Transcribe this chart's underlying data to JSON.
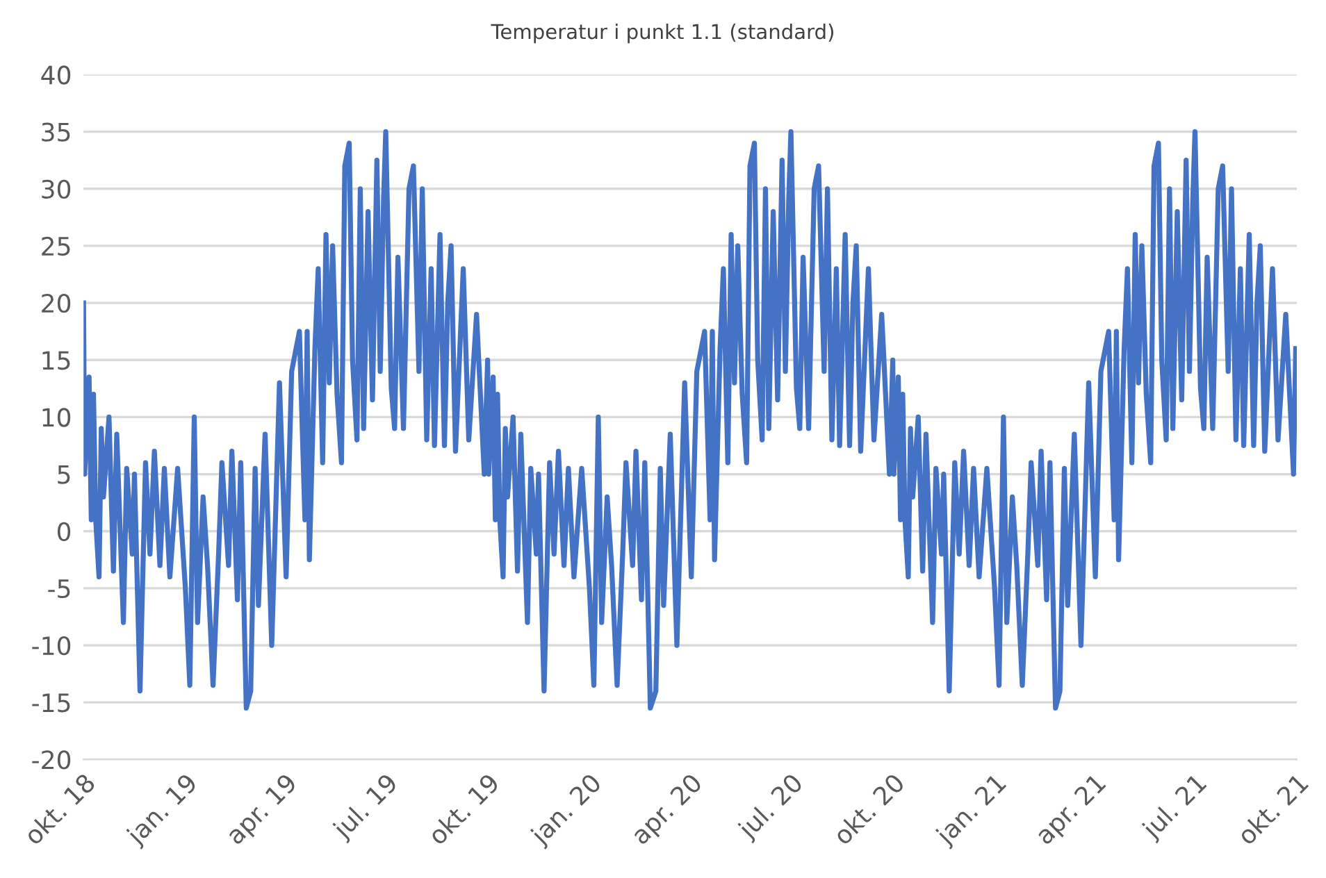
{
  "chart_data": {
    "type": "line",
    "title": "Temperatur i punkt 1.1 (standard)",
    "x": [
      "2018-10-01",
      "2018-10-02",
      "2018-10-06",
      "2018-10-08",
      "2018-10-10",
      "2018-10-12",
      "2018-10-15",
      "2018-10-17",
      "2018-10-19",
      "2018-10-24",
      "2018-10-28",
      "2018-10-31",
      "2018-11-06",
      "2018-11-09",
      "2018-11-14",
      "2018-11-16",
      "2018-11-21",
      "2018-11-26",
      "2018-11-30",
      "2018-12-04",
      "2018-12-09",
      "2018-12-13",
      "2018-12-18",
      "2018-12-25",
      "2019-01-01",
      "2019-01-05",
      "2019-01-09",
      "2019-01-12",
      "2019-01-17",
      "2019-01-21",
      "2019-01-26",
      "2019-01-31",
      "2019-02-03",
      "2019-02-09",
      "2019-02-12",
      "2019-02-17",
      "2019-02-20",
      "2019-02-25",
      "2019-03-01",
      "2019-03-05",
      "2019-03-08",
      "2019-03-14",
      "2019-03-20",
      "2019-03-27",
      "2019-04-02",
      "2019-04-07",
      "2019-04-14",
      "2019-04-19",
      "2019-04-21",
      "2019-04-23",
      "2019-04-28",
      "2019-05-01",
      "2019-05-05",
      "2019-05-08",
      "2019-05-11",
      "2019-05-14",
      "2019-05-18",
      "2019-05-22",
      "2019-05-25",
      "2019-05-29",
      "2019-06-01",
      "2019-06-05",
      "2019-06-08",
      "2019-06-11",
      "2019-06-15",
      "2019-06-19",
      "2019-06-23",
      "2019-06-26",
      "2019-06-29",
      "2019-07-01",
      "2019-07-06",
      "2019-07-09",
      "2019-07-12",
      "2019-07-17",
      "2019-07-22",
      "2019-07-26",
      "2019-07-31",
      "2019-08-03",
      "2019-08-07",
      "2019-08-11",
      "2019-08-14",
      "2019-08-19",
      "2019-08-23",
      "2019-08-26",
      "2019-08-29",
      "2019-09-02",
      "2019-09-09",
      "2019-09-14",
      "2019-09-21",
      "2019-09-28",
      "2019-10-01",
      "2019-10-02",
      "2019-10-06",
      "2019-10-08",
      "2019-10-10",
      "2019-10-12",
      "2019-10-15",
      "2019-10-17",
      "2019-10-19",
      "2019-10-24",
      "2019-10-28",
      "2019-10-31",
      "2019-11-06",
      "2019-11-09",
      "2019-11-14",
      "2019-11-16",
      "2019-11-21",
      "2019-11-26",
      "2019-11-30",
      "2019-12-04",
      "2019-12-09",
      "2019-12-13",
      "2019-12-18",
      "2019-12-25",
      "2020-01-01",
      "2020-01-05",
      "2020-01-09",
      "2020-01-12",
      "2020-01-17",
      "2020-01-21",
      "2020-01-26",
      "2020-01-31",
      "2020-02-03",
      "2020-02-09",
      "2020-02-12",
      "2020-02-17",
      "2020-02-20",
      "2020-02-25",
      "2020-03-01",
      "2020-03-05",
      "2020-03-08",
      "2020-03-14",
      "2020-03-20",
      "2020-03-27",
      "2020-04-02",
      "2020-04-07",
      "2020-04-14",
      "2020-04-19",
      "2020-04-21",
      "2020-04-23",
      "2020-04-28",
      "2020-05-01",
      "2020-05-05",
      "2020-05-08",
      "2020-05-11",
      "2020-05-14",
      "2020-05-18",
      "2020-05-22",
      "2020-05-25",
      "2020-05-29",
      "2020-06-01",
      "2020-06-05",
      "2020-06-08",
      "2020-06-11",
      "2020-06-15",
      "2020-06-19",
      "2020-06-23",
      "2020-06-26",
      "2020-06-29",
      "2020-07-01",
      "2020-07-06",
      "2020-07-09",
      "2020-07-12",
      "2020-07-17",
      "2020-07-22",
      "2020-07-26",
      "2020-07-31",
      "2020-08-03",
      "2020-08-07",
      "2020-08-11",
      "2020-08-14",
      "2020-08-19",
      "2020-08-23",
      "2020-08-26",
      "2020-08-29",
      "2020-09-02",
      "2020-09-09",
      "2020-09-14",
      "2020-09-21",
      "2020-09-28",
      "2020-10-01",
      "2020-10-02",
      "2020-10-06",
      "2020-10-08",
      "2020-10-10",
      "2020-10-12",
      "2020-10-15",
      "2020-10-17",
      "2020-10-19",
      "2020-10-24",
      "2020-10-28",
      "2020-10-31",
      "2020-11-06",
      "2020-11-09",
      "2020-11-14",
      "2020-11-16",
      "2020-11-21",
      "2020-11-26",
      "2020-11-30",
      "2020-12-04",
      "2020-12-09",
      "2020-12-13",
      "2020-12-18",
      "2020-12-25",
      "2021-01-01",
      "2021-01-05",
      "2021-01-09",
      "2021-01-12",
      "2021-01-17",
      "2021-01-21",
      "2021-01-26",
      "2021-01-31",
      "2021-02-03",
      "2021-02-09",
      "2021-02-12",
      "2021-02-17",
      "2021-02-20",
      "2021-02-25",
      "2021-03-01",
      "2021-03-05",
      "2021-03-08",
      "2021-03-14",
      "2021-03-20",
      "2021-03-27",
      "2021-04-02",
      "2021-04-07",
      "2021-04-14",
      "2021-04-19",
      "2021-04-21",
      "2021-04-23",
      "2021-04-28",
      "2021-05-01",
      "2021-05-05",
      "2021-05-08",
      "2021-05-11",
      "2021-05-14",
      "2021-05-18",
      "2021-05-22",
      "2021-05-25",
      "2021-05-29",
      "2021-06-01",
      "2021-06-05",
      "2021-06-08",
      "2021-06-11",
      "2021-06-15",
      "2021-06-19",
      "2021-06-23",
      "2021-06-26",
      "2021-06-29",
      "2021-07-01",
      "2021-07-06",
      "2021-07-09",
      "2021-07-12",
      "2021-07-17",
      "2021-07-22",
      "2021-07-26",
      "2021-07-31",
      "2021-08-03",
      "2021-08-07",
      "2021-08-11",
      "2021-08-14",
      "2021-08-19",
      "2021-08-23",
      "2021-08-26",
      "2021-08-29",
      "2021-09-02",
      "2021-09-09",
      "2021-09-14",
      "2021-09-21",
      "2021-09-28",
      "2021-09-30"
    ],
    "series": [
      {
        "color": "#4472c4",
        "values": [
          20,
          5,
          13.5,
          1,
          12,
          1,
          -4,
          9,
          3,
          10,
          -3.5,
          8.5,
          -8,
          5.5,
          -2,
          5,
          -14,
          6,
          -2,
          7,
          -3,
          5.5,
          -4,
          5.5,
          -5,
          -13.5,
          10,
          -8,
          3,
          -3,
          -13.5,
          -2,
          6,
          -3,
          7,
          -6,
          6,
          -15.5,
          -14,
          5.5,
          -6.5,
          8.5,
          -10,
          13,
          -4,
          14,
          17.5,
          1,
          17.5,
          -2.5,
          16,
          23,
          6,
          26,
          13,
          25,
          12,
          6,
          32,
          34,
          15,
          8,
          30,
          9,
          28,
          11.5,
          32.5,
          14,
          29,
          35,
          12.5,
          9,
          24,
          9,
          30,
          32,
          14,
          30,
          8,
          23,
          7.5,
          26,
          7.5,
          20,
          25,
          7,
          23,
          8,
          19,
          5,
          15,
          5,
          13.5,
          1,
          12,
          1,
          -4,
          9,
          3,
          10,
          -3.5,
          8.5,
          -8,
          5.5,
          -2,
          5,
          -14,
          6,
          -2,
          7,
          -3,
          5.5,
          -4,
          5.5,
          -5,
          -13.5,
          10,
          -8,
          3,
          -3,
          -13.5,
          -2,
          6,
          -3,
          7,
          -6,
          6,
          -15.5,
          -14,
          5.5,
          -6.5,
          8.5,
          -10,
          13,
          -4,
          14,
          17.5,
          1,
          17.5,
          -2.5,
          16,
          23,
          6,
          26,
          13,
          25,
          12,
          6,
          32,
          34,
          15,
          8,
          30,
          9,
          28,
          11.5,
          32.5,
          14,
          29,
          35,
          12.5,
          9,
          24,
          9,
          30,
          32,
          14,
          30,
          8,
          23,
          7.5,
          26,
          7.5,
          20,
          25,
          7,
          23,
          8,
          19,
          5,
          15,
          5,
          13.5,
          1,
          12,
          1,
          -4,
          9,
          3,
          10,
          -3.5,
          8.5,
          -8,
          5.5,
          -2,
          5,
          -14,
          6,
          -2,
          7,
          -3,
          5.5,
          -4,
          5.5,
          -5,
          -13.5,
          10,
          -8,
          3,
          -3,
          -13.5,
          -2,
          6,
          -3,
          7,
          -6,
          6,
          -15.5,
          -14,
          5.5,
          -6.5,
          8.5,
          -10,
          13,
          -4,
          14,
          17.5,
          1,
          17.5,
          -2.5,
          16,
          23,
          6,
          26,
          13,
          25,
          12,
          6,
          32,
          34,
          15,
          8,
          30,
          9,
          28,
          11.5,
          32.5,
          14,
          29,
          35,
          12.5,
          9,
          24,
          9,
          30,
          32,
          14,
          30,
          8,
          23,
          7.5,
          26,
          7.5,
          20,
          25,
          7,
          23,
          8,
          19,
          5,
          16
        ]
      }
    ],
    "xlim": [
      "2018-10-01",
      "2021-10-01"
    ],
    "xticks": [
      {
        "value": "2018-10-01",
        "label": "okt. 18"
      },
      {
        "value": "2019-01-01",
        "label": "jan. 19"
      },
      {
        "value": "2019-04-01",
        "label": "apr. 19"
      },
      {
        "value": "2019-07-01",
        "label": "jul. 19"
      },
      {
        "value": "2019-10-01",
        "label": "okt. 19"
      },
      {
        "value": "2020-01-01",
        "label": "jan. 20"
      },
      {
        "value": "2020-04-01",
        "label": "apr. 20"
      },
      {
        "value": "2020-07-01",
        "label": "jul. 20"
      },
      {
        "value": "2020-10-01",
        "label": "okt. 20"
      },
      {
        "value": "2021-01-01",
        "label": "jan. 21"
      },
      {
        "value": "2021-04-01",
        "label": "apr. 21"
      },
      {
        "value": "2021-07-01",
        "label": "jul. 21"
      },
      {
        "value": "2021-10-01",
        "label": "okt. 21"
      }
    ],
    "ylim": [
      -20,
      40
    ],
    "yticks": [
      -20,
      -15,
      -10,
      -5,
      0,
      5,
      10,
      15,
      20,
      25,
      30,
      35,
      40
    ],
    "grid": "y",
    "legend": false,
    "marker": "none",
    "line_style": "solid"
  }
}
